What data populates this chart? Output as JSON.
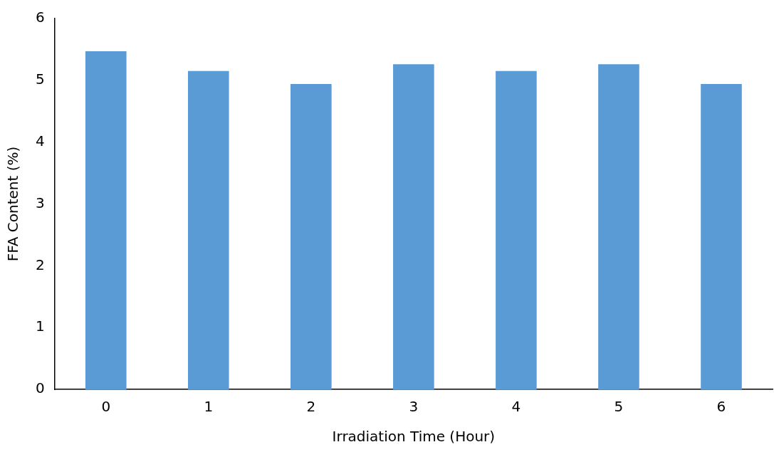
{
  "chart_data": {
    "type": "bar",
    "xlabel": "Irradiation Time (Hour)",
    "ylabel": "FFA Content (%)",
    "categories": [
      "0",
      "1",
      "2",
      "3",
      "4",
      "5",
      "6"
    ],
    "values": [
      5.47,
      5.15,
      4.94,
      5.26,
      5.15,
      5.26,
      4.94
    ],
    "color": "#5b9bd5",
    "ylim": [
      0,
      6
    ],
    "yticks": [
      0,
      1,
      2,
      3,
      4,
      5,
      6
    ],
    "grid": false,
    "legend": false
  }
}
